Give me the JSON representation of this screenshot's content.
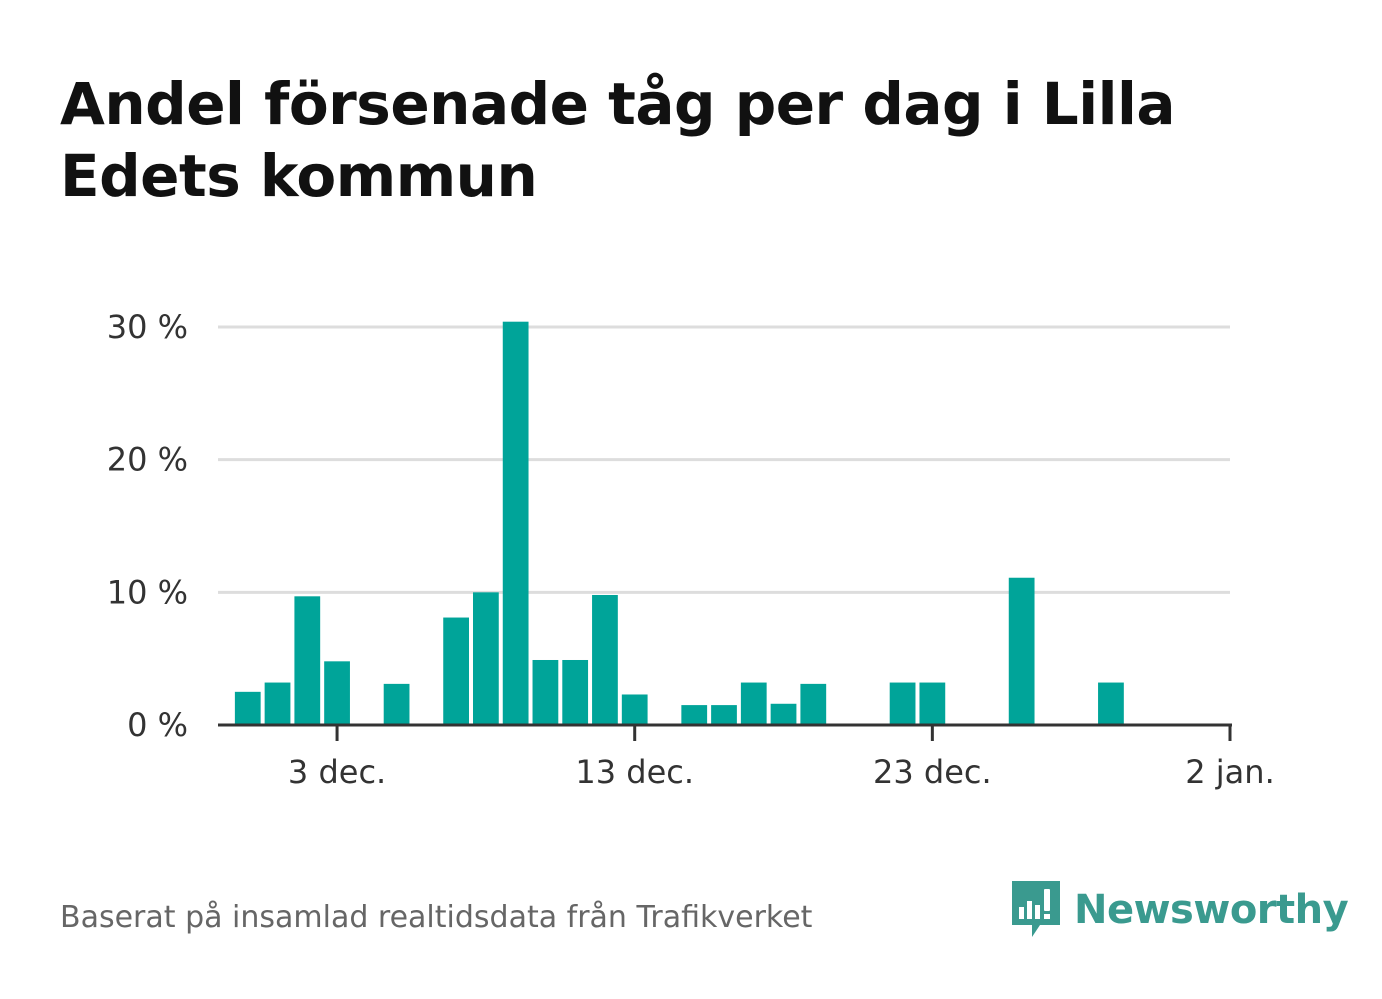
{
  "title": "Andel försenade tåg per dag i Lilla Edets kommun",
  "source": "Baserat på insamlad realtidsdata från Trafikverket",
  "brand": "Newsworthy",
  "colors": {
    "bar": "#00a499",
    "grid": "#dddddd",
    "axis": "#333333",
    "brand": "#3a9a8f"
  },
  "chart_data": {
    "type": "bar",
    "x_start": "2023-11-29",
    "x_end": "2024-01-02",
    "dates": [
      "2023-11-30",
      "2023-12-01",
      "2023-12-02",
      "2023-12-03",
      "2023-12-04",
      "2023-12-05",
      "2023-12-06",
      "2023-12-07",
      "2023-12-08",
      "2023-12-09",
      "2023-12-10",
      "2023-12-11",
      "2023-12-12",
      "2023-12-13",
      "2023-12-14",
      "2023-12-15",
      "2023-12-16",
      "2023-12-17",
      "2023-12-18",
      "2023-12-19",
      "2023-12-20",
      "2023-12-21",
      "2023-12-22",
      "2023-12-23",
      "2023-12-24",
      "2023-12-25",
      "2023-12-26",
      "2023-12-27",
      "2023-12-28",
      "2023-12-29",
      "2023-12-30",
      "2023-12-31"
    ],
    "values": [
      2.5,
      3.2,
      9.7,
      4.8,
      0,
      3.1,
      0,
      8.1,
      10.0,
      30.4,
      4.9,
      4.9,
      9.8,
      2.3,
      0,
      1.5,
      1.5,
      3.2,
      1.6,
      3.1,
      0,
      0,
      3.2,
      3.2,
      0,
      0,
      11.1,
      0,
      0,
      3.2,
      0,
      0
    ],
    "ylim": [
      0,
      30
    ],
    "y_ticks": [
      0,
      10,
      20,
      30
    ],
    "y_tick_labels": [
      "0 %",
      "10 %",
      "20 %",
      "30 %"
    ],
    "x_ticks": [
      "2023-12-03",
      "2023-12-13",
      "2023-12-23",
      "2024-01-02"
    ],
    "x_tick_labels": [
      "3 dec.",
      "13 dec.",
      "23 dec.",
      "2 jan."
    ],
    "grid": true,
    "title": "Andel försenade tåg per dag i Lilla Edets kommun",
    "xlabel": "",
    "ylabel": ""
  }
}
